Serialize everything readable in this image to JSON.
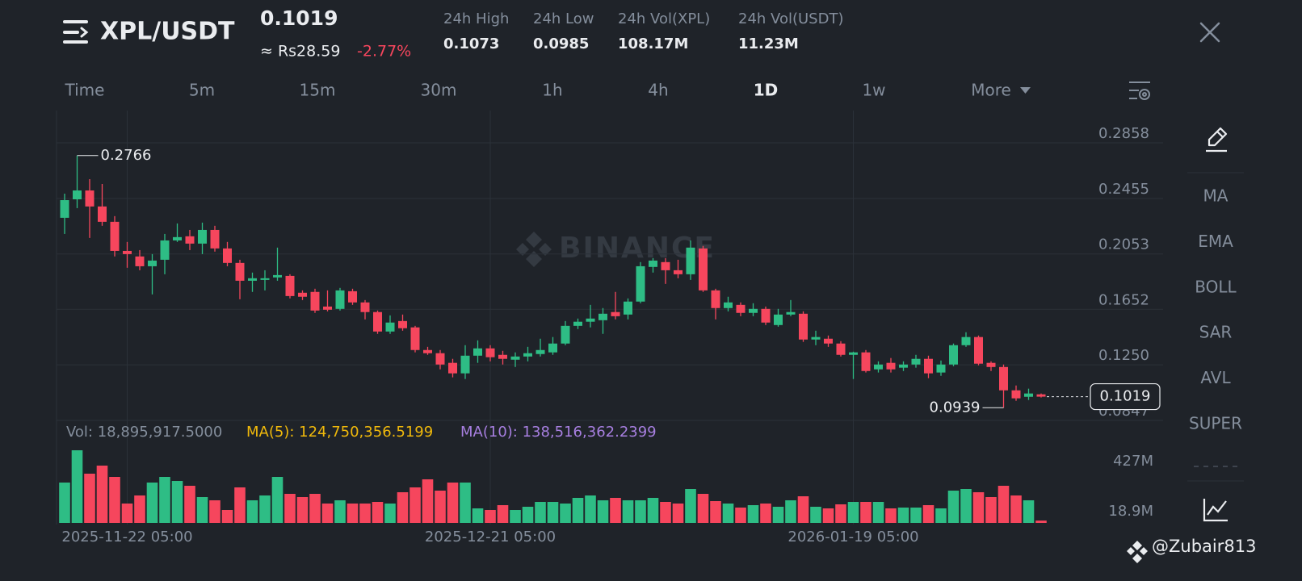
{
  "header": {
    "pair": "XPL/USDT",
    "price": "0.1019",
    "local_price": "≈ Rs28.59",
    "change": "-2.77%",
    "stats": [
      {
        "label": "24h High",
        "value": "0.1073"
      },
      {
        "label": "24h Low",
        "value": "0.0985"
      },
      {
        "label": "24h Vol(XPL)",
        "value": "108.17M"
      },
      {
        "label": "24h Vol(USDT)",
        "value": "11.23M"
      }
    ]
  },
  "intervals": [
    "Time",
    "5m",
    "15m",
    "30m",
    "1h",
    "4h",
    "1D",
    "1w",
    "More"
  ],
  "indicators": [
    "MA",
    "EMA",
    "BOLL",
    "SAR",
    "AVL",
    "SUPER"
  ],
  "watermark": "BINANCE",
  "credit": "@Zubair813",
  "volume_info": {
    "vol": "Vol: 18,895,917.5000",
    "ma5": "MA(5): 124,750,356.5199",
    "ma10": "MA(10): 138,516,362.2399"
  },
  "chart_data": {
    "type": "candlestick",
    "categories": [
      null,
      null,
      null,
      null,
      null,
      "2025-11-22 05:00",
      null,
      null,
      null,
      null,
      null,
      null,
      null,
      null,
      null,
      null,
      null,
      null,
      null,
      null,
      null,
      null,
      null,
      null,
      null,
      null,
      null,
      null,
      null,
      null,
      null,
      null,
      null,
      null,
      "2025-12-21 05:00",
      null,
      null,
      null,
      null,
      null,
      null,
      null,
      null,
      null,
      null,
      null,
      null,
      null,
      null,
      null,
      null,
      null,
      null,
      null,
      null,
      null,
      null,
      null,
      null,
      null,
      null,
      null,
      null,
      "2026-01-19 05:00",
      null,
      null,
      null,
      null,
      null,
      null,
      null,
      null,
      null,
      null,
      null,
      null,
      null,
      null,
      null
    ],
    "ohlc": [
      [
        0.2315,
        0.249,
        0.2198,
        0.2443
      ],
      [
        0.2449,
        0.2766,
        0.2385,
        0.2513
      ],
      [
        0.2513,
        0.2595,
        0.2169,
        0.2397
      ],
      [
        0.2397,
        0.256,
        0.2257,
        0.2286
      ],
      [
        0.2286,
        0.2327,
        0.2035,
        0.2075
      ],
      [
        0.2075,
        0.214,
        0.1953,
        0.2052
      ],
      [
        0.2035,
        0.2081,
        0.1935,
        0.1964
      ],
      [
        0.1964,
        0.2052,
        0.176,
        0.2005
      ],
      [
        0.2011,
        0.2198,
        0.1906,
        0.2151
      ],
      [
        0.2151,
        0.2274,
        0.214,
        0.2175
      ],
      [
        0.2181,
        0.2227,
        0.2081,
        0.2128
      ],
      [
        0.2128,
        0.228,
        0.2052,
        0.2227
      ],
      [
        0.2227,
        0.2257,
        0.207,
        0.2093
      ],
      [
        0.2093,
        0.214,
        0.1964,
        0.1988
      ],
      [
        0.1988,
        0.2011,
        0.1725,
        0.1859
      ],
      [
        0.1859,
        0.1918,
        0.1778,
        0.1877
      ],
      [
        0.1865,
        0.1935,
        0.1789,
        0.1877
      ],
      [
        0.1883,
        0.2099,
        0.1859,
        0.19
      ],
      [
        0.1894,
        0.1906,
        0.1731,
        0.1748
      ],
      [
        0.1772,
        0.1789,
        0.1719,
        0.1743
      ],
      [
        0.1778,
        0.1801,
        0.1626,
        0.1643
      ],
      [
        0.1672,
        0.1789,
        0.1637,
        0.1649
      ],
      [
        0.1655,
        0.1807,
        0.1643,
        0.1789
      ],
      [
        0.1783,
        0.1801,
        0.1684,
        0.1702
      ],
      [
        0.1702,
        0.1719,
        0.1579,
        0.1632
      ],
      [
        0.1632,
        0.1643,
        0.1474,
        0.1491
      ],
      [
        0.1491,
        0.1608,
        0.1474,
        0.1556
      ],
      [
        0.1567,
        0.1614,
        0.1497,
        0.1515
      ],
      [
        0.1521,
        0.1532,
        0.134,
        0.1357
      ],
      [
        0.1357,
        0.138,
        0.1322,
        0.1334
      ],
      [
        0.1334,
        0.1357,
        0.1217,
        0.1252
      ],
      [
        0.1264,
        0.1293,
        0.1159,
        0.1188
      ],
      [
        0.1188,
        0.1392,
        0.1147,
        0.1316
      ],
      [
        0.1316,
        0.1427,
        0.1264,
        0.1369
      ],
      [
        0.1369,
        0.1392,
        0.1275,
        0.1305
      ],
      [
        0.1322,
        0.1351,
        0.1252,
        0.1293
      ],
      [
        0.1287,
        0.134,
        0.1234,
        0.131
      ],
      [
        0.131,
        0.138,
        0.1275,
        0.1334
      ],
      [
        0.1328,
        0.1439,
        0.131,
        0.1357
      ],
      [
        0.134,
        0.1451,
        0.1322,
        0.1404
      ],
      [
        0.1404,
        0.1567,
        0.1392,
        0.1532
      ],
      [
        0.1532,
        0.1585,
        0.1509,
        0.1562
      ],
      [
        0.1562,
        0.1684,
        0.1521,
        0.1585
      ],
      [
        0.1573,
        0.1661,
        0.1474,
        0.162
      ],
      [
        0.1632,
        0.1778,
        0.1579,
        0.1602
      ],
      [
        0.1614,
        0.1731,
        0.1579,
        0.1708
      ],
      [
        0.1708,
        0.1994,
        0.1696,
        0.1964
      ],
      [
        0.1959,
        0.2023,
        0.1918,
        0.2005
      ],
      [
        0.1994,
        0.2023,
        0.1836,
        0.1935
      ],
      [
        0.1935,
        0.2011,
        0.1877,
        0.1906
      ],
      [
        0.1906,
        0.2151,
        0.1865,
        0.2099
      ],
      [
        0.2093,
        0.2111,
        0.1778,
        0.1789
      ],
      [
        0.1789,
        0.1801,
        0.1579,
        0.1661
      ],
      [
        0.1661,
        0.1743,
        0.1637,
        0.1702
      ],
      [
        0.1684,
        0.1702,
        0.1602,
        0.1626
      ],
      [
        0.1626,
        0.1696,
        0.1602,
        0.1655
      ],
      [
        0.1655,
        0.1672,
        0.1538,
        0.1556
      ],
      [
        0.1538,
        0.1655,
        0.1526,
        0.1614
      ],
      [
        0.1614,
        0.1719,
        0.1602,
        0.1632
      ],
      [
        0.162,
        0.1637,
        0.1416,
        0.1433
      ],
      [
        0.1433,
        0.1497,
        0.1392,
        0.1451
      ],
      [
        0.1439,
        0.1462,
        0.138,
        0.1404
      ],
      [
        0.1404,
        0.1421,
        0.131,
        0.1322
      ],
      [
        0.1322,
        0.1345,
        0.1147,
        0.134
      ],
      [
        0.134,
        0.1357,
        0.1194,
        0.1205
      ],
      [
        0.1217,
        0.1275,
        0.1194,
        0.1252
      ],
      [
        0.1264,
        0.1299,
        0.1194,
        0.1217
      ],
      [
        0.1229,
        0.1275,
        0.1205,
        0.1252
      ],
      [
        0.1252,
        0.1322,
        0.1229,
        0.1293
      ],
      [
        0.1293,
        0.1316,
        0.1153,
        0.1188
      ],
      [
        0.1194,
        0.1281,
        0.117,
        0.1252
      ],
      [
        0.1252,
        0.1404,
        0.124,
        0.1392
      ],
      [
        0.1392,
        0.1486,
        0.138,
        0.1451
      ],
      [
        0.1451,
        0.1462,
        0.1246,
        0.1258
      ],
      [
        0.1264,
        0.1275,
        0.1205,
        0.1234
      ],
      [
        0.1234,
        0.1252,
        0.0939,
        0.1065
      ],
      [
        0.1065,
        0.11,
        0.0989,
        0.1007
      ],
      [
        0.1018,
        0.1077,
        0.0995,
        0.1042
      ],
      [
        0.1036,
        0.1042,
        0.1013,
        0.1019
      ]
    ],
    "up_color": "#2ebd85",
    "down_color": "#f6465d",
    "ylim": [
      0.0847,
      0.3092
    ],
    "yticks": [
      0.2858,
      0.2455,
      0.2053,
      0.1652,
      {
        "value": 0.125,
        "label": "0.1250"
      },
      0.0847
    ],
    "grid": true,
    "volume": {
      "values": [
        328.5,
        591.3,
        400.8,
        466.5,
        374.5,
        157.7,
        223.4,
        328.5,
        374.5,
        341.6,
        302.2,
        210.2,
        184.0,
        105.1,
        289.1,
        184.0,
        223.4,
        374.5,
        236.5,
        210.2,
        236.5,
        157.7,
        184.0,
        157.7,
        157.7,
        170.8,
        157.7,
        249.7,
        289.1,
        354.8,
        262.8,
        328.5,
        328.5,
        118.3,
        105.1,
        144.5,
        105.1,
        131.4,
        170.8,
        170.8,
        157.7,
        203.7,
        223.4,
        184.0,
        203.7,
        184.0,
        184.0,
        203.7,
        170.8,
        157.7,
        275.9,
        236.5,
        177.4,
        157.7,
        124.8,
        144.5,
        157.7,
        131.4,
        184.0,
        216.8,
        131.4,
        118.3,
        151.1,
        170.8,
        170.8,
        170.8,
        118.3,
        124.8,
        124.8,
        144.5,
        118.3,
        262.8,
        275.9,
        249.7,
        210.2,
        302.2,
        223.4,
        184.0,
        18.9
      ],
      "ylim": [
        0,
        657
      ],
      "yticks": [
        {
          "value": 427,
          "label": "427M"
        },
        {
          "value": 18.9,
          "label": "18.9M"
        }
      ]
    }
  }
}
